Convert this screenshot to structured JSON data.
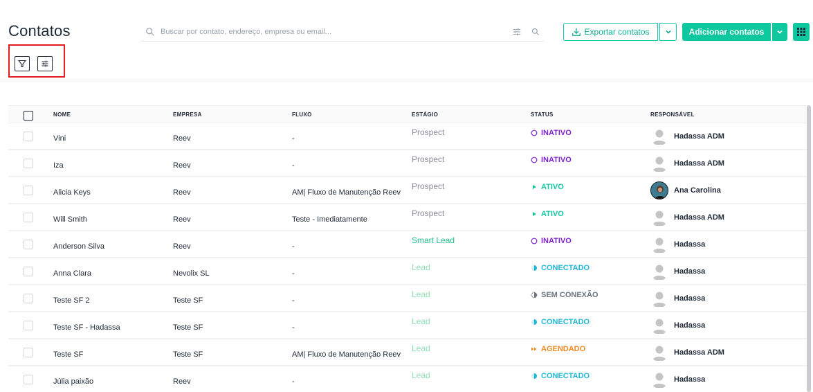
{
  "header": {
    "title": "Contatos",
    "search_placeholder": "Buscar por contato, endereço, empresa ou email...",
    "export_label": "Exportar contatos",
    "add_label": "Adicionar contatos"
  },
  "colors": {
    "accent": "#10c8a0",
    "inativo": "#7e22ce",
    "ativo": "#10c8a0",
    "conectado": "#22b8d8",
    "sem_conexao": "#6b7280",
    "agendado": "#f08a24",
    "prospect": "#8b8b9b",
    "smart_lead": "#22c08a",
    "lead": "#8fe0b6",
    "highlight_box": "#e11d1d"
  },
  "table": {
    "headers": {
      "nome": "NOME",
      "empresa": "EMPRESA",
      "fluxo": "FLUXO",
      "estagio": "ESTÁGIO",
      "status": "STATUS",
      "responsavel": "RESPONSÁVEL"
    },
    "rows": [
      {
        "nome": "Vini",
        "empresa": "Reev",
        "fluxo": "-",
        "estagio": "Prospect",
        "stage_color": "#8b8b9b",
        "status": "INATIVO",
        "status_kind": "inativo",
        "responsavel": "Hadassa ADM",
        "avatar": "default"
      },
      {
        "nome": "Iza",
        "empresa": "Reev",
        "fluxo": "-",
        "estagio": "Prospect",
        "stage_color": "#8b8b9b",
        "status": "INATIVO",
        "status_kind": "inativo",
        "responsavel": "Hadassa ADM",
        "avatar": "default"
      },
      {
        "nome": "Alicia Keys",
        "empresa": "Reev",
        "fluxo": "AM| Fluxo de Manutenção Reev",
        "estagio": "Prospect",
        "stage_color": "#8b8b9b",
        "status": "ATIVO",
        "status_kind": "ativo",
        "responsavel": "Ana Carolina",
        "avatar": "photo"
      },
      {
        "nome": "Will Smith",
        "empresa": "Reev",
        "fluxo": "Teste - Imediatamente",
        "estagio": "Prospect",
        "stage_color": "#8b8b9b",
        "status": "ATIVO",
        "status_kind": "ativo",
        "responsavel": "Hadassa ADM",
        "avatar": "default"
      },
      {
        "nome": "Anderson Silva",
        "empresa": "Reev",
        "fluxo": "-",
        "estagio": "Smart Lead",
        "stage_color": "#22c08a",
        "status": "INATIVO",
        "status_kind": "inativo",
        "responsavel": "Hadassa",
        "avatar": "default"
      },
      {
        "nome": "Anna Clara",
        "empresa": "Nevolix SL",
        "fluxo": "-",
        "estagio": "Lead",
        "stage_color": "#8fe0b6",
        "status": "CONECTADO",
        "status_kind": "conectado",
        "responsavel": "Hadassa",
        "avatar": "default"
      },
      {
        "nome": "Teste SF 2",
        "empresa": "Teste SF",
        "fluxo": "-",
        "estagio": "Lead",
        "stage_color": "#8fe0b6",
        "status": "SEM CONEXÃO",
        "status_kind": "sem_conexao",
        "responsavel": "Hadassa",
        "avatar": "default"
      },
      {
        "nome": "Teste SF - Hadassa",
        "empresa": "Teste SF",
        "fluxo": "-",
        "estagio": "Lead",
        "stage_color": "#8fe0b6",
        "status": "CONECTADO",
        "status_kind": "conectado",
        "responsavel": "Hadassa",
        "avatar": "default"
      },
      {
        "nome": "Teste SF",
        "empresa": "Teste SF",
        "fluxo": "AM| Fluxo de Manutenção Reev",
        "estagio": "Lead",
        "stage_color": "#8fe0b6",
        "status": "AGENDADO",
        "status_kind": "agendado",
        "responsavel": "Hadassa ADM",
        "avatar": "default"
      },
      {
        "nome": "Júlia paixão",
        "empresa": "Reev",
        "fluxo": "-",
        "estagio": "Lead",
        "stage_color": "#8fe0b6",
        "status": "CONECTADO",
        "status_kind": "conectado",
        "responsavel": "Hadassa",
        "avatar": "default"
      }
    ]
  }
}
